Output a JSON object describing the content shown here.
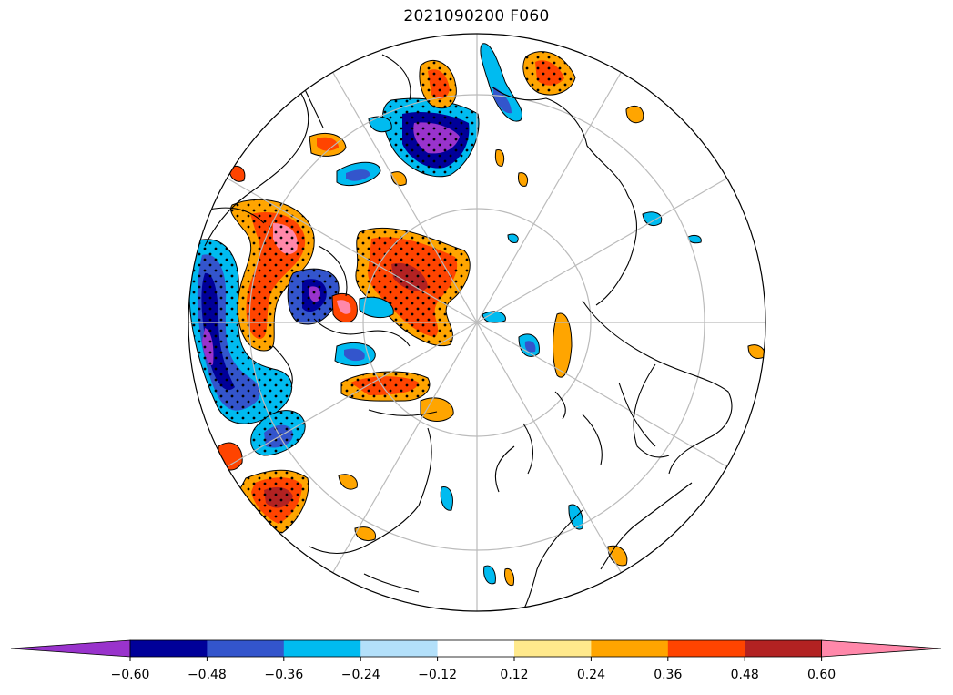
{
  "title": "2021090200 F060",
  "colorbar": {
    "extend": "both",
    "colors": [
      "#9933cc",
      "#000099",
      "#3355cc",
      "#00bbf0",
      "#b3e0fa",
      "#ffffff",
      "#ffe98c",
      "#ffa500",
      "#ff4400",
      "#b22222",
      "#ff88aa"
    ],
    "tick_labels": [
      "−0.60",
      "−0.48",
      "−0.36",
      "−0.24",
      "−0.12",
      "0.12",
      "0.24",
      "0.36",
      "0.48",
      "0.60"
    ]
  },
  "map": {
    "projection": "north-polar-stereographic",
    "gridlines": "grey",
    "coastlines": "black",
    "stippling": "black dots over significant regions"
  }
}
